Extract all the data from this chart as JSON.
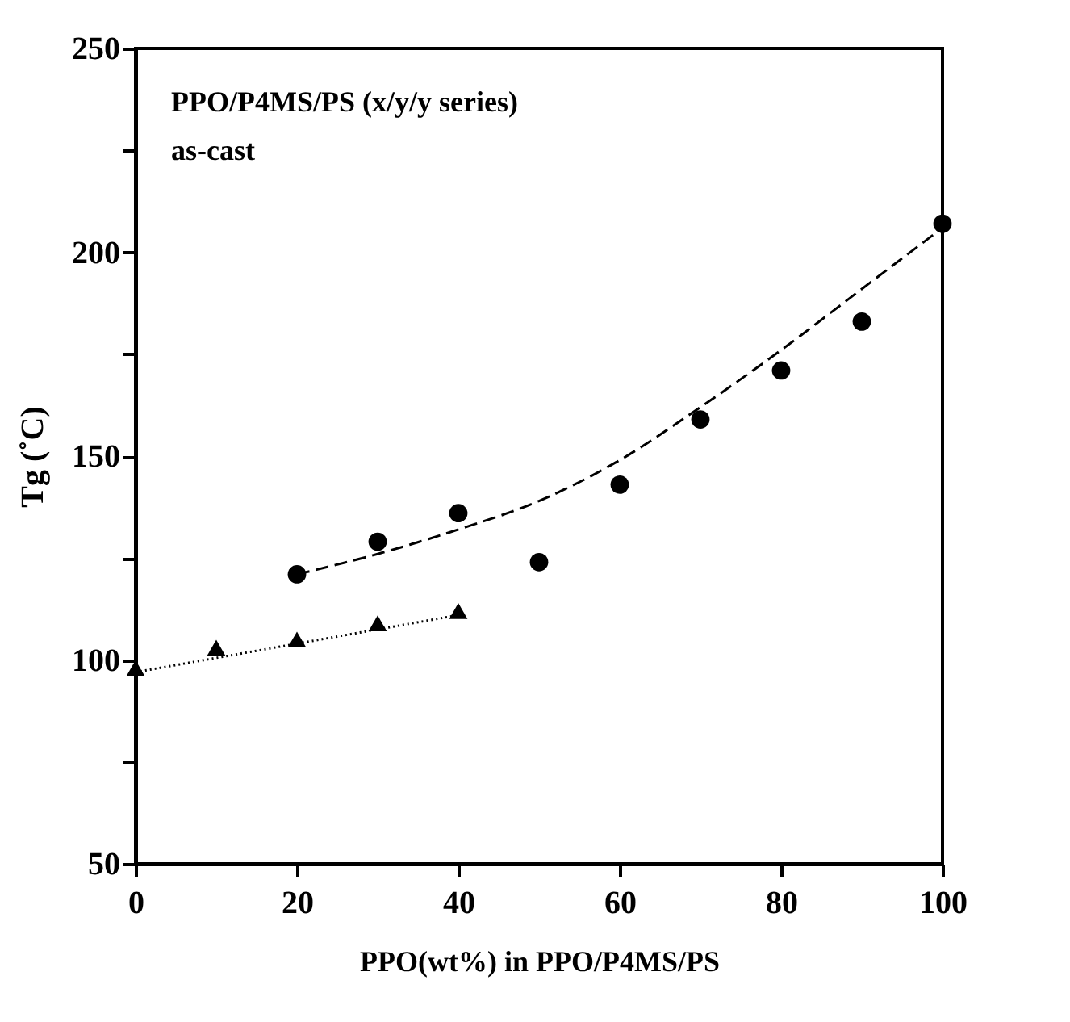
{
  "chart_data": {
    "type": "scatter",
    "xlabel": "PPO(wt%) in PPO/P4MS/PS",
    "ylabel": "Tg (˚C)",
    "annotations": [
      "PPO/P4MS/PS   (x/y/y series)",
      "as-cast"
    ],
    "series": [
      {
        "marker": "circle",
        "color": "#000000",
        "x": [
          20,
          30,
          40,
          50,
          60,
          70,
          80,
          90,
          100
        ],
        "values": [
          121,
          129,
          136,
          124,
          143,
          159,
          171,
          183,
          207
        ]
      },
      {
        "type": "line",
        "marker": "none",
        "line_style": "dashed",
        "color": "#000000",
        "x": [
          20,
          30,
          40,
          50,
          60,
          70,
          80,
          90,
          100
        ],
        "values": [
          121,
          126,
          132,
          139,
          149,
          162,
          176,
          191,
          206
        ]
      },
      {
        "marker": "triangle",
        "color": "#000000",
        "x": [
          0,
          10,
          20,
          30,
          40
        ],
        "values": [
          98,
          103,
          105,
          109,
          112
        ]
      },
      {
        "type": "line",
        "marker": "none",
        "line_style": "dotted",
        "color": "#000000",
        "x": [
          0,
          40
        ],
        "values": [
          97,
          111
        ]
      }
    ],
    "xlim": [
      0,
      100
    ],
    "xticks": [
      0,
      20,
      40,
      60,
      80,
      100
    ],
    "ylim": [
      50,
      250
    ],
    "yticks": [
      50,
      {
        "value": 75,
        "label": null
      },
      100,
      {
        "value": 125,
        "label": null
      },
      150,
      {
        "value": 175,
        "label": null
      },
      200,
      {
        "value": 225,
        "label": null
      },
      250
    ],
    "grid": false
  }
}
